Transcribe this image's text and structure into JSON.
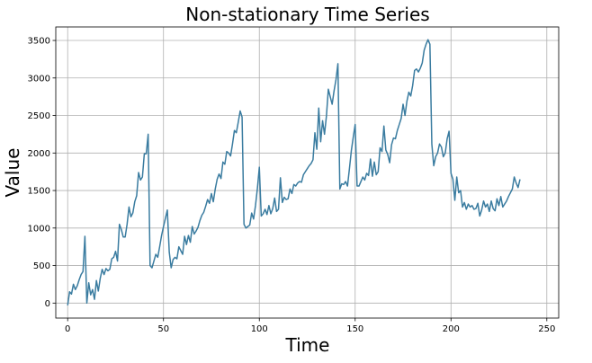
{
  "chart_data": {
    "type": "line",
    "title": "Non-stationary Time Series",
    "xlabel": "Time",
    "ylabel": "Value",
    "xlim": [
      -6.2,
      256.2
    ],
    "ylim": [
      -200,
      3680
    ],
    "xticks": [
      0,
      50,
      100,
      150,
      200,
      250
    ],
    "yticks": [
      0,
      500,
      1000,
      1500,
      2000,
      2500,
      3000,
      3500
    ],
    "grid": true,
    "line_color": "#3a7ca0",
    "x_start": 0,
    "x_step": 1,
    "y": [
      -30,
      150,
      120,
      250,
      180,
      230,
      310,
      380,
      420,
      890,
      0,
      270,
      110,
      180,
      50,
      300,
      160,
      330,
      450,
      380,
      460,
      430,
      450,
      590,
      610,
      690,
      560,
      1050,
      980,
      880,
      880,
      1050,
      1280,
      1150,
      1200,
      1350,
      1430,
      1740,
      1640,
      1680,
      1990,
      1990,
      2250,
      500,
      470,
      560,
      650,
      610,
      750,
      900,
      1020,
      1130,
      1240,
      680,
      470,
      580,
      610,
      590,
      750,
      700,
      650,
      890,
      780,
      900,
      810,
      1020,
      920,
      960,
      1010,
      1100,
      1170,
      1210,
      1290,
      1380,
      1330,
      1460,
      1350,
      1520,
      1650,
      1720,
      1660,
      1880,
      1850,
      2020,
      2000,
      1960,
      2120,
      2300,
      2270,
      2410,
      2560,
      2480,
      1050,
      1000,
      1020,
      1040,
      1200,
      1120,
      1300,
      1530,
      1810,
      1160,
      1190,
      1250,
      1180,
      1300,
      1190,
      1260,
      1400,
      1220,
      1250,
      1670,
      1340,
      1410,
      1380,
      1390,
      1520,
      1460,
      1580,
      1560,
      1600,
      1620,
      1610,
      1710,
      1750,
      1790,
      1830,
      1860,
      1910,
      2270,
      2050,
      2600,
      2150,
      2430,
      2250,
      2490,
      2850,
      2750,
      2650,
      2830,
      2980,
      3190,
      1520,
      1590,
      1580,
      1620,
      1560,
      1790,
      2030,
      2210,
      2380,
      1560,
      1560,
      1620,
      1680,
      1640,
      1730,
      1700,
      1920,
      1690,
      1880,
      1710,
      1750,
      2070,
      2020,
      2360,
      2040,
      1980,
      1870,
      2110,
      2200,
      2190,
      2300,
      2380,
      2460,
      2650,
      2500,
      2690,
      2810,
      2760,
      2900,
      3100,
      3120,
      3080,
      3130,
      3200,
      3370,
      3450,
      3510,
      3450,
      2120,
      1830,
      1950,
      2000,
      2120,
      2080,
      1950,
      2000,
      2190,
      2290,
      1730,
      1650,
      1370,
      1680,
      1470,
      1500,
      1280,
      1340,
      1250,
      1320,
      1280,
      1300,
      1250,
      1260,
      1330,
      1160,
      1240,
      1360,
      1280,
      1320,
      1220,
      1360,
      1260,
      1230,
      1390,
      1300,
      1420,
      1280,
      1320,
      1360,
      1420,
      1470,
      1520,
      1680,
      1600,
      1540,
      1650
    ]
  }
}
